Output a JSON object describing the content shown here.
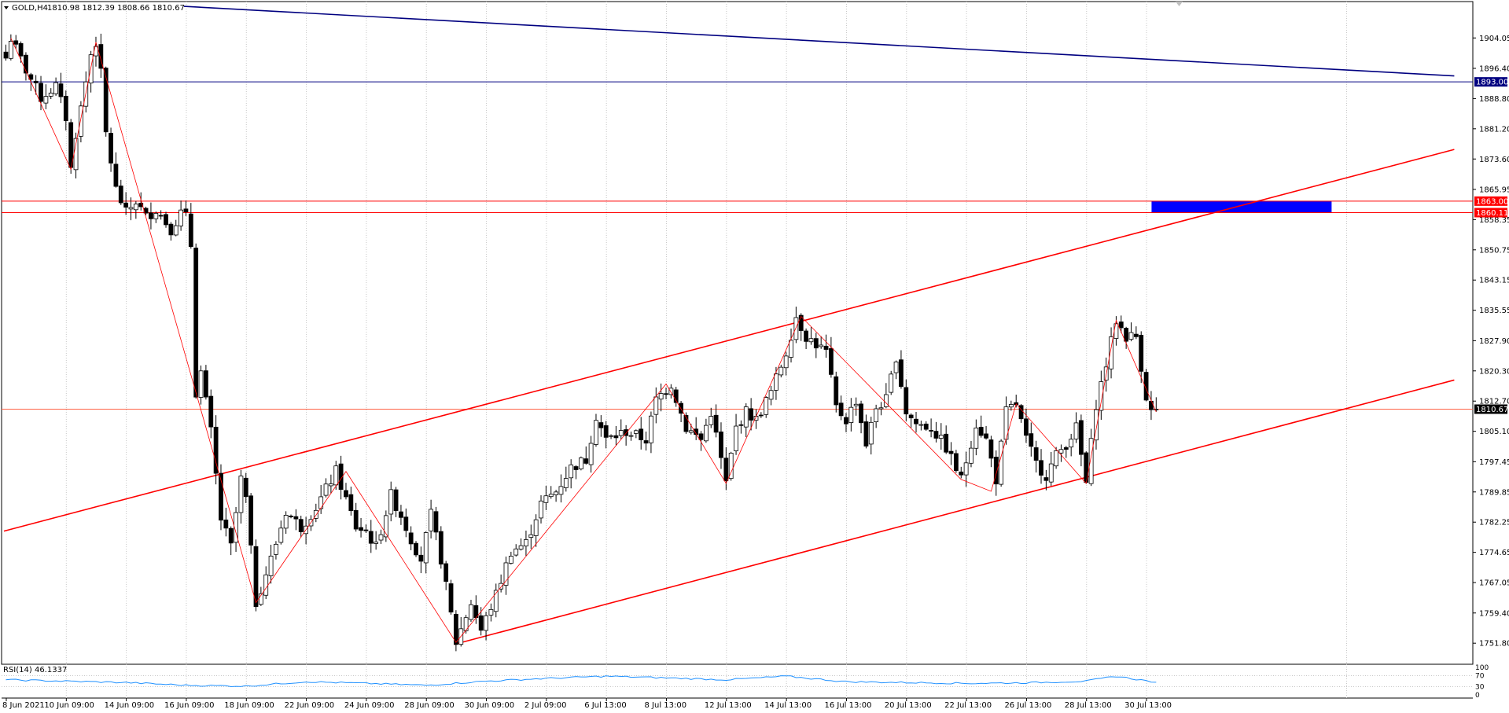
{
  "window": {
    "symbol_header": "GOLD,H4",
    "ohlc_header": "1810.98 1812.39 1808.66 1810.67",
    "rsi_header": "RSI(14) 46.1337"
  },
  "colors": {
    "background": "#ffffff",
    "bull_fill": "#ffffff",
    "bear_fill": "#000000",
    "wick": "#000000",
    "grid": "#c8c8c8",
    "trendline": "#ff0000",
    "zigzag": "#ff0000",
    "navy_line": "#000080",
    "zone": "#0000ff",
    "bid_line": "#ff6347",
    "rsi_line": "#1e90ff"
  },
  "chart_data": {
    "type": "candlestick",
    "symbol": "GOLD",
    "timeframe": "H4",
    "last_price": 1810.67,
    "ylim": [
      1746.5,
      1913.2
    ],
    "y_ticks": [
      "1904.05",
      "1896.40",
      "1888.80",
      "1881.20",
      "1873.60",
      "1865.95",
      "1858.35",
      "1850.75",
      "1843.15",
      "1835.55",
      "1827.90",
      "1820.30",
      "1812.70",
      "1805.10",
      "1797.45",
      "1789.85",
      "1782.25",
      "1774.65",
      "1767.05",
      "1759.40",
      "1751.80"
    ],
    "x_ticks": [
      {
        "i": 0,
        "label": "8 Jun 2021"
      },
      {
        "i": 12,
        "label": "10 Jun 09:00"
      },
      {
        "i": 24,
        "label": "14 Jun 09:00"
      },
      {
        "i": 36,
        "label": "16 Jun 09:00"
      },
      {
        "i": 48,
        "label": "18 Jun 09:00"
      },
      {
        "i": 60,
        "label": "22 Jun 09:00"
      },
      {
        "i": 72,
        "label": "24 Jun 09:00"
      },
      {
        "i": 84,
        "label": "28 Jun 09:00"
      },
      {
        "i": 96,
        "label": "30 Jun 09:00"
      },
      {
        "i": 108,
        "label": "2 Jul 09:00"
      },
      {
        "i": 120,
        "label": "6 Jul 13:00"
      },
      {
        "i": 132,
        "label": "8 Jul 13:00"
      },
      {
        "i": 144,
        "label": "12 Jul 13:00"
      },
      {
        "i": 156,
        "label": "14 Jul 13:00"
      },
      {
        "i": 168,
        "label": "16 Jul 13:00"
      },
      {
        "i": 180,
        "label": "20 Jul 13:00"
      },
      {
        "i": 192,
        "label": "22 Jul 13:00"
      },
      {
        "i": 204,
        "label": "26 Jul 13:00"
      },
      {
        "i": 216,
        "label": "28 Jul 13:00"
      },
      {
        "i": 228,
        "label": "30 Jul 13:00"
      }
    ],
    "ohlc_keypoints": [
      [
        0,
        1899
      ],
      [
        1,
        1904
      ],
      [
        4,
        1896
      ],
      [
        7,
        1889
      ],
      [
        10,
        1892
      ],
      [
        12,
        1884
      ],
      [
        13,
        1871
      ],
      [
        14,
        1880
      ],
      [
        16,
        1893
      ],
      [
        17,
        1900
      ],
      [
        18,
        1903
      ],
      [
        19,
        1895
      ],
      [
        20,
        1880
      ],
      [
        22,
        1866
      ],
      [
        24,
        1860
      ],
      [
        26,
        1863
      ],
      [
        28,
        1859
      ],
      [
        30,
        1861
      ],
      [
        33,
        1856
      ],
      [
        35,
        1860
      ],
      [
        36,
        1859
      ],
      [
        37,
        1852
      ],
      [
        38,
        1815
      ],
      [
        39,
        1820
      ],
      [
        41,
        1805
      ],
      [
        43,
        1783
      ],
      [
        45,
        1776
      ],
      [
        47,
        1793
      ],
      [
        48,
        1788
      ],
      [
        49,
        1775
      ],
      [
        50,
        1762
      ],
      [
        53,
        1773
      ],
      [
        56,
        1785
      ],
      [
        59,
        1781
      ],
      [
        62,
        1786
      ],
      [
        66,
        1795
      ],
      [
        70,
        1781
      ],
      [
        72,
        1780
      ],
      [
        74,
        1776
      ],
      [
        77,
        1789
      ],
      [
        79,
        1784
      ],
      [
        81,
        1778
      ],
      [
        83,
        1773
      ],
      [
        85,
        1784
      ],
      [
        87,
        1773
      ],
      [
        90,
        1752
      ],
      [
        93,
        1762
      ],
      [
        95,
        1755
      ],
      [
        98,
        1764
      ],
      [
        101,
        1775
      ],
      [
        104,
        1777
      ],
      [
        107,
        1787
      ],
      [
        110,
        1790
      ],
      [
        113,
        1796
      ],
      [
        116,
        1798
      ],
      [
        118,
        1809
      ],
      [
        120,
        1803
      ],
      [
        124,
        1805
      ],
      [
        128,
        1803
      ],
      [
        130,
        1813
      ],
      [
        133,
        1817
      ],
      [
        136,
        1806
      ],
      [
        139,
        1803
      ],
      [
        141,
        1810
      ],
      [
        144,
        1792
      ],
      [
        146,
        1806
      ],
      [
        148,
        1810
      ],
      [
        150,
        1808
      ],
      [
        153,
        1815
      ],
      [
        156,
        1825
      ],
      [
        158,
        1834
      ],
      [
        160,
        1829
      ],
      [
        162,
        1827
      ],
      [
        164,
        1825
      ],
      [
        166,
        1811
      ],
      [
        168,
        1808
      ],
      [
        170,
        1813
      ],
      [
        172,
        1802
      ],
      [
        174,
        1811
      ],
      [
        176,
        1813
      ],
      [
        178,
        1824
      ],
      [
        180,
        1810
      ],
      [
        182,
        1807
      ],
      [
        185,
        1806
      ],
      [
        188,
        1801
      ],
      [
        191,
        1793
      ],
      [
        194,
        1807
      ],
      [
        196,
        1803
      ],
      [
        198,
        1793
      ],
      [
        200,
        1810
      ],
      [
        202,
        1812
      ],
      [
        204,
        1803
      ],
      [
        206,
        1797
      ],
      [
        208,
        1794
      ],
      [
        210,
        1799
      ],
      [
        212,
        1802
      ],
      [
        214,
        1806
      ],
      [
        216,
        1792
      ],
      [
        218,
        1812
      ],
      [
        220,
        1822
      ],
      [
        222,
        1833
      ],
      [
        224,
        1829
      ],
      [
        226,
        1829
      ],
      [
        228,
        1814
      ],
      [
        229,
        1810
      ],
      [
        230,
        1810.67
      ]
    ],
    "zigzag": [
      [
        1,
        1904
      ],
      [
        13,
        1871
      ],
      [
        18,
        1903
      ],
      [
        50,
        1762
      ],
      [
        68,
        1795
      ],
      [
        90,
        1752
      ],
      [
        132,
        1817
      ],
      [
        144,
        1792
      ],
      [
        159,
        1834
      ],
      [
        191,
        1793
      ],
      [
        197,
        1790
      ],
      [
        202,
        1812
      ],
      [
        216,
        1792
      ],
      [
        222,
        1833
      ],
      [
        230,
        1810
      ]
    ],
    "trendlines": [
      {
        "name": "upper-channel",
        "p1": [
          0,
          1780
        ],
        "p2": [
          290,
          1876
        ]
      },
      {
        "name": "lower-channel",
        "p1": [
          90,
          1751.5
        ],
        "p2": [
          290,
          1818
        ]
      },
      {
        "name": "long-descending",
        "p1": [
          36,
          1912
        ],
        "p2": [
          290,
          1894.5
        ]
      }
    ],
    "horizontal_lines": [
      {
        "name": "navy-level",
        "value": 1893.0,
        "label": "1893.00",
        "color": "#000080"
      },
      {
        "name": "red-level-upper",
        "value": 1863.0,
        "label": "1863.00",
        "color": "#ff0000"
      },
      {
        "name": "red-level-lower",
        "value": 1860.11,
        "label": "1860.11",
        "color": "#ff0000"
      },
      {
        "name": "bid-line",
        "value": 1810.67,
        "label": "1810.67",
        "color": "#000000"
      }
    ],
    "zone": {
      "from_index": 229,
      "to_index": 265,
      "high": 1863.0,
      "low": 1860.11
    },
    "rsi": {
      "period": 14,
      "value": 46.1337,
      "levels": [
        70,
        30
      ],
      "scale_labels": [
        "100",
        "70",
        "30",
        "0"
      ],
      "keypoints": [
        [
          0,
          55
        ],
        [
          12,
          50
        ],
        [
          24,
          45
        ],
        [
          36,
          35
        ],
        [
          48,
          32
        ],
        [
          60,
          48
        ],
        [
          72,
          42
        ],
        [
          84,
          35
        ],
        [
          96,
          50
        ],
        [
          108,
          60
        ],
        [
          120,
          68
        ],
        [
          132,
          62
        ],
        [
          144,
          55
        ],
        [
          156,
          68
        ],
        [
          168,
          48
        ],
        [
          180,
          45
        ],
        [
          192,
          42
        ],
        [
          204,
          44
        ],
        [
          216,
          50
        ],
        [
          222,
          68
        ],
        [
          230,
          46
        ]
      ]
    }
  }
}
